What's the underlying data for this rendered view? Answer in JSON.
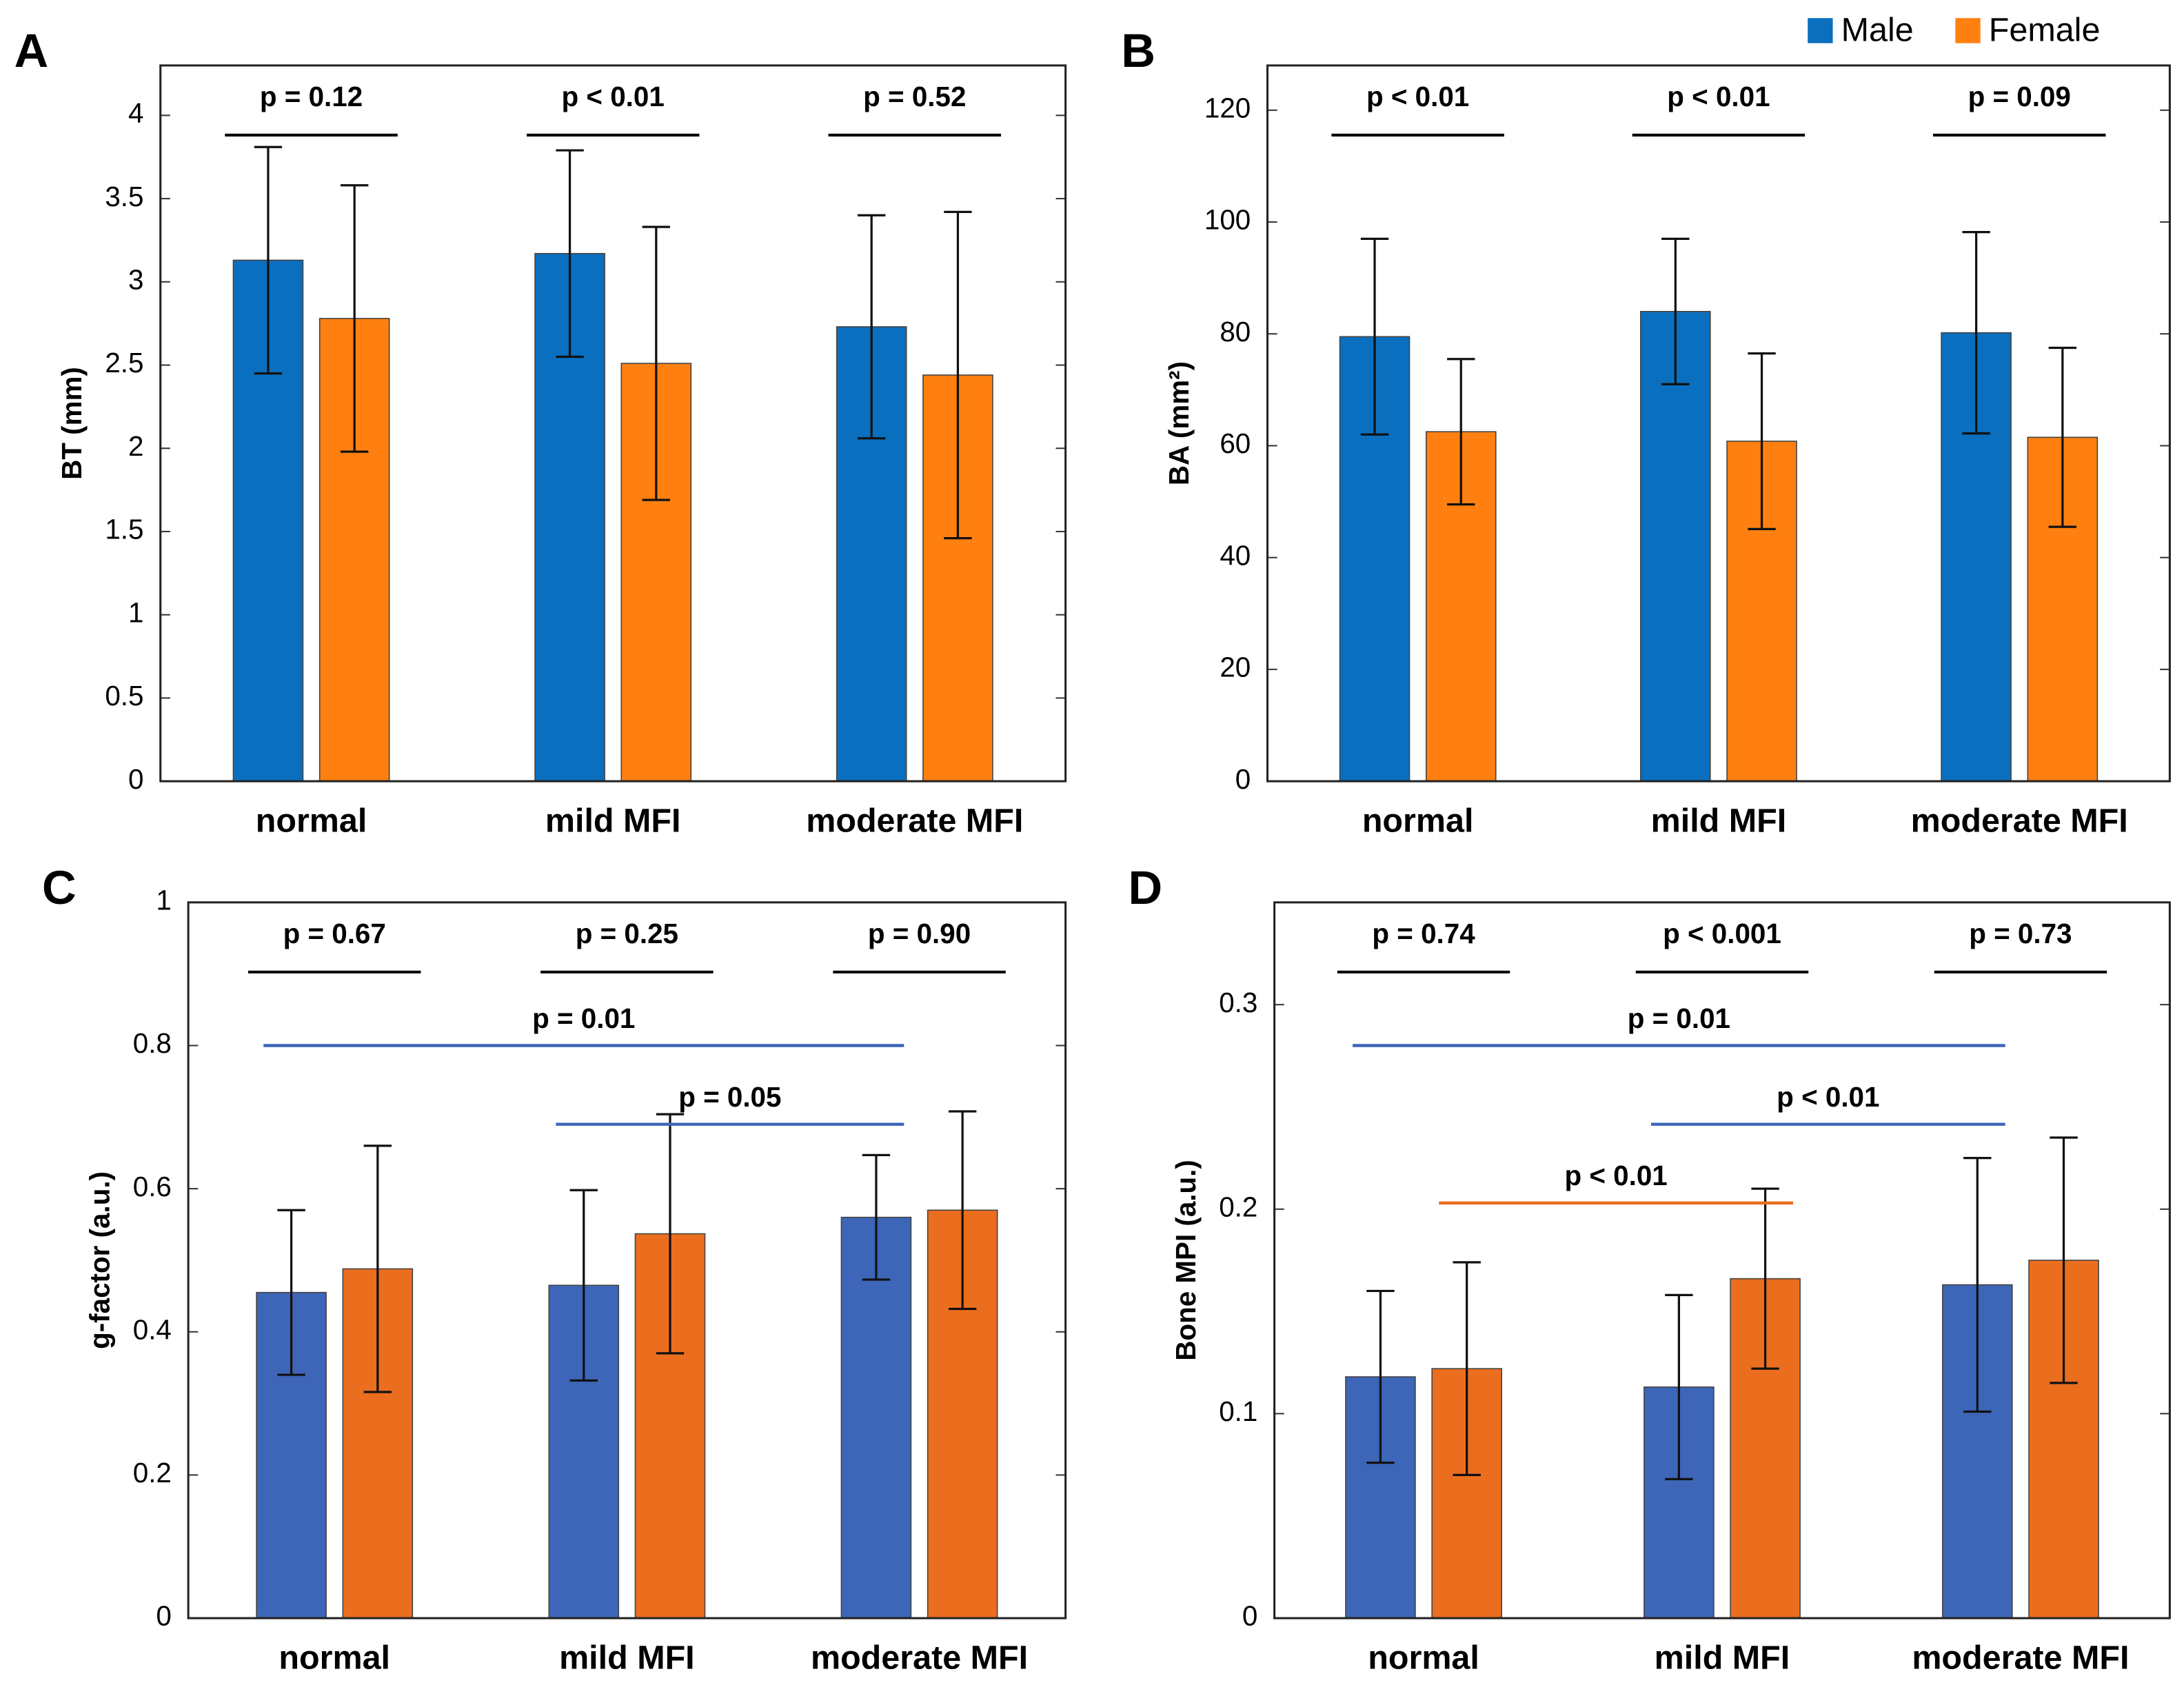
{
  "chart_data": [
    {
      "type": "bar",
      "panel": "A",
      "ylabel": "BT (mm)",
      "categories": [
        "normal",
        "mild MFI",
        "moderate MFI"
      ],
      "series": [
        {
          "name": "Male",
          "color": "#0a6fbf",
          "values": [
            3.13,
            3.17,
            2.73
          ],
          "errors": [
            0.68,
            0.62,
            0.67
          ]
        },
        {
          "name": "Female",
          "color": "#ff8010",
          "values": [
            2.78,
            2.51,
            2.44
          ],
          "errors": [
            0.8,
            0.82,
            0.98
          ]
        }
      ],
      "group_p_values": [
        "p = 0.12",
        "p < 0.01",
        "p = 0.52"
      ],
      "ylim": [
        0,
        4.3
      ],
      "yticks": [
        0,
        0.5,
        1,
        1.5,
        2,
        2.5,
        3,
        3.5,
        4
      ]
    },
    {
      "type": "bar",
      "panel": "B",
      "ylabel": "BA (mm²)",
      "categories": [
        "normal",
        "mild MFI",
        "moderate MFI"
      ],
      "series": [
        {
          "name": "Male",
          "color": "#0a6fbf",
          "values": [
            79.5,
            84,
            80.2
          ],
          "errors": [
            17.5,
            13,
            18
          ]
        },
        {
          "name": "Female",
          "color": "#ff8010",
          "values": [
            62.5,
            60.8,
            61.5
          ],
          "errors": [
            13,
            15.7,
            16
          ]
        }
      ],
      "group_p_values": [
        "p < 0.01",
        "p < 0.01",
        "p = 0.09"
      ],
      "ylim": [
        0,
        128
      ],
      "yticks": [
        0,
        20,
        40,
        60,
        80,
        100,
        120
      ],
      "legend": "upper right"
    },
    {
      "type": "bar",
      "panel": "C",
      "ylabel": "g-factor (a.u.)",
      "categories": [
        "normal",
        "mild MFI",
        "moderate MFI"
      ],
      "series": [
        {
          "name": "Male",
          "color": "#3d66b8",
          "values": [
            0.455,
            0.465,
            0.56
          ],
          "errors": [
            0.115,
            0.133,
            0.087
          ]
        },
        {
          "name": "Female",
          "color": "#eb6e1f",
          "values": [
            0.488,
            0.537,
            0.57
          ],
          "errors": [
            0.172,
            0.167,
            0.138
          ]
        }
      ],
      "group_p_values": [
        "p = 0.67",
        "p = 0.25",
        "p = 0.90"
      ],
      "comparisons": [
        {
          "label": "p = 0.01",
          "series": "Male",
          "from": "normal",
          "to": "moderate MFI"
        },
        {
          "label": "p = 0.05",
          "series": "Male",
          "from": "mild MFI",
          "to": "moderate MFI"
        }
      ],
      "ylim": [
        0,
        1
      ],
      "yticks": [
        0,
        0.2,
        0.4,
        0.6,
        0.8,
        1
      ]
    },
    {
      "type": "bar",
      "panel": "D",
      "ylabel": "Bone MPI  (a.u.)",
      "categories": [
        "normal",
        "mild MFI",
        "moderate MFI"
      ],
      "series": [
        {
          "name": "Male",
          "color": "#3d66b8",
          "values": [
            0.118,
            0.113,
            0.163
          ],
          "errors": [
            0.042,
            0.045,
            0.062
          ]
        },
        {
          "name": "Female",
          "color": "#eb6e1f",
          "values": [
            0.122,
            0.166,
            0.175
          ],
          "errors": [
            0.052,
            0.044,
            0.06
          ]
        }
      ],
      "group_p_values": [
        "p = 0.74",
        "p < 0.001",
        "p = 0.73"
      ],
      "comparisons": [
        {
          "label": "p = 0.01",
          "series": "Male",
          "from": "normal",
          "to": "moderate MFI"
        },
        {
          "label": "p < 0.01",
          "series": "Male",
          "from": "mild MFI",
          "to": "moderate MFI"
        },
        {
          "label": "p < 0.01",
          "series": "Female",
          "from": "normal",
          "to": "mild MFI"
        }
      ],
      "ylim": [
        0,
        0.35
      ],
      "yticks": [
        0,
        0.1,
        0.2,
        0.3
      ]
    }
  ]
}
